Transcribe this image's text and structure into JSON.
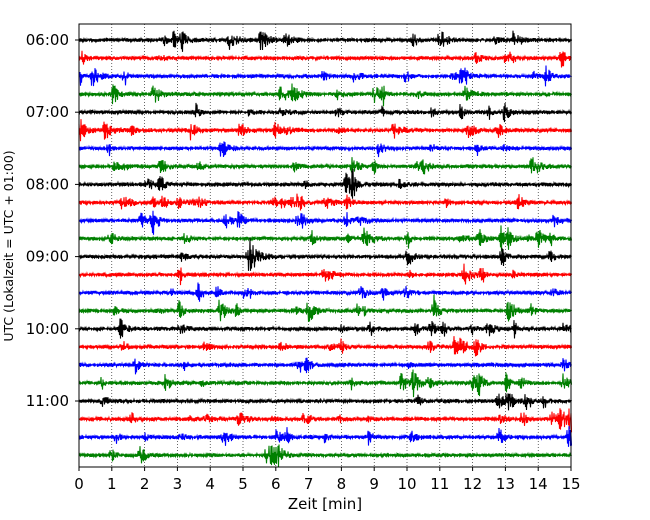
{
  "chart_data": {
    "type": "line",
    "xlabel": "Zeit  [min]",
    "ylabel": "UTC (Lokalzeit = UTC + 01:00)",
    "xlim": [
      0,
      15
    ],
    "x_ticks": [
      "0",
      "1",
      "2",
      "3",
      "4",
      "5",
      "6",
      "7",
      "8",
      "9",
      "10",
      "11",
      "12",
      "13",
      "14",
      "15"
    ],
    "y_tick_labels": [
      "06:00",
      "07:00",
      "08:00",
      "09:00",
      "10:00",
      "11:00"
    ],
    "grid": "vertical dotted",
    "traces_per_hour": 4,
    "trace_minutes": 15,
    "trace_colors": [
      "#000000",
      "#ff0000",
      "#0000ff",
      "#008000"
    ],
    "traces": [
      {
        "start": "06:00",
        "color": "#000000"
      },
      {
        "start": "06:15",
        "color": "#ff0000"
      },
      {
        "start": "06:30",
        "color": "#0000ff"
      },
      {
        "start": "06:45",
        "color": "#008000"
      },
      {
        "start": "07:00",
        "color": "#000000"
      },
      {
        "start": "07:15",
        "color": "#ff0000"
      },
      {
        "start": "07:30",
        "color": "#0000ff"
      },
      {
        "start": "07:45",
        "color": "#008000"
      },
      {
        "start": "08:00",
        "color": "#000000"
      },
      {
        "start": "08:15",
        "color": "#ff0000"
      },
      {
        "start": "08:30",
        "color": "#0000ff"
      },
      {
        "start": "08:45",
        "color": "#008000"
      },
      {
        "start": "09:00",
        "color": "#000000"
      },
      {
        "start": "09:15",
        "color": "#ff0000"
      },
      {
        "start": "09:30",
        "color": "#0000ff"
      },
      {
        "start": "09:45",
        "color": "#008000"
      },
      {
        "start": "10:00",
        "color": "#000000"
      },
      {
        "start": "10:15",
        "color": "#ff0000"
      },
      {
        "start": "10:30",
        "color": "#0000ff"
      },
      {
        "start": "10:45",
        "color": "#008000"
      },
      {
        "start": "11:00",
        "color": "#000000"
      },
      {
        "start": "11:15",
        "color": "#ff0000"
      },
      {
        "start": "11:30",
        "color": "#0000ff"
      },
      {
        "start": "11:45",
        "color": "#008000"
      }
    ]
  }
}
